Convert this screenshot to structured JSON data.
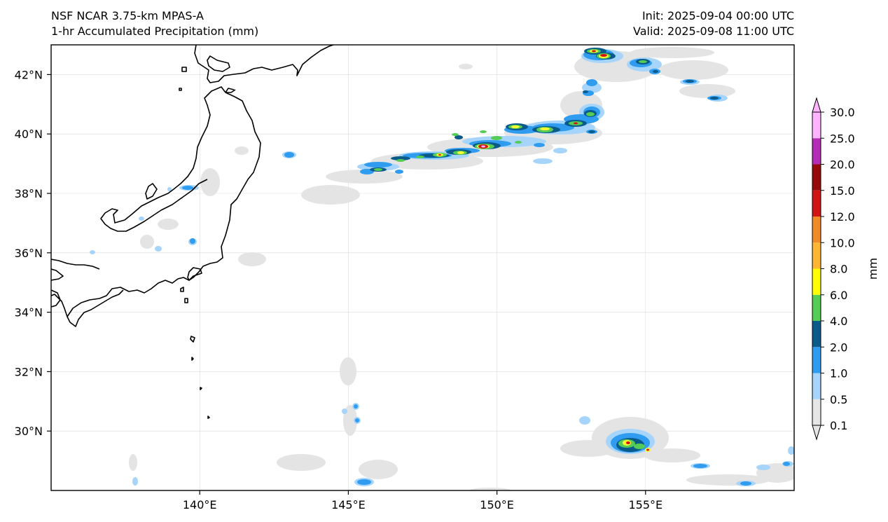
{
  "header": {
    "model_title": "NSF NCAR 3.75-km MPAS-A",
    "field_title": "1-hr Accumulated Precipitation (mm)",
    "init_time": "Init: 2025-09-04 00:00 UTC",
    "valid_time": "Valid: 2025-09-08 11:00 UTC"
  },
  "map": {
    "lon_range": [
      135.0,
      160.0
    ],
    "lat_range": [
      28.0,
      43.0
    ],
    "lon_ticks": [
      "140°E",
      "145°E",
      "150°E",
      "155°E"
    ],
    "lat_ticks": [
      "30°N",
      "32°N",
      "34°N",
      "36°N",
      "38°N",
      "40°N",
      "42°N"
    ],
    "gridlines": true
  },
  "colorbar": {
    "label": "mm",
    "levels": [
      "0.1",
      "0.5",
      "1.0",
      "2.0",
      "4.0",
      "6.0",
      "8.0",
      "10.0",
      "12.0",
      "15.0",
      "20.0",
      "25.0",
      "30.0"
    ],
    "colors": [
      "#e6e6e6",
      "#a6d4fa",
      "#2f9cf0",
      "#0a5a8a",
      "#55cc55",
      "#ffff00",
      "#ffb733",
      "#f08c28",
      "#d21414",
      "#960a0a",
      "#b42db4",
      "#ffb4ff"
    ],
    "extend": "both"
  },
  "precip_features": [
    {
      "region": "Northern Pacific band east of Japan",
      "max_category": "20.0"
    },
    {
      "region": "Southeast of Japan near 155°E, 29.5°N",
      "max_category": "15.0"
    }
  ]
}
